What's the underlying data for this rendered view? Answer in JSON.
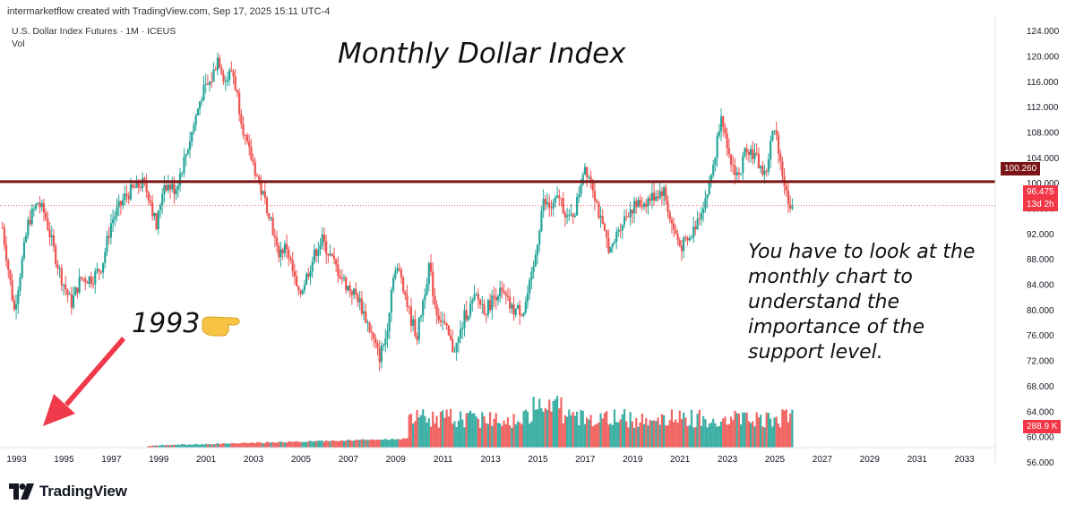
{
  "header": {
    "credit": "intermarketflow created with TradingView.com, Sep 17, 2025 15:11 UTC-4",
    "symbol": "U.S. Dollar Index Futures · 1M · ICEUS",
    "volume_label": "Vol"
  },
  "annotations": {
    "title": "Monthly Dollar Index",
    "year_callout": "1993",
    "note_lines": [
      "You have to look at the",
      "monthly chart to",
      "understand the",
      "importance of the",
      "support level."
    ]
  },
  "price_tags": {
    "support": "100.260",
    "last_price": "96.475",
    "countdown": "13d 2h",
    "volume": "288.9 K"
  },
  "footer": {
    "brand": "TradingView"
  },
  "colors": {
    "up": "#26a69a",
    "down": "#ef5350",
    "support_line": "#7b1416",
    "arrow": "#f0394a",
    "hand": "#f6c343",
    "axis_text": "#131722"
  },
  "chart_data": {
    "type": "candlestick",
    "period": "monthly",
    "y_axis_ticks": [
      56.0,
      60.0,
      64.0,
      68.0,
      72.0,
      76.0,
      80.0,
      84.0,
      88.0,
      92.0,
      96.0,
      100.0,
      104.0,
      108.0,
      112.0,
      116.0,
      120.0,
      124.0
    ],
    "y_axis_tick_labels": [
      "56.000",
      "60.000",
      "64.000",
      "68.000",
      "72.000",
      "76.000",
      "80.000",
      "84.000",
      "88.000",
      "92.000",
      "96.000",
      "100.000",
      "104.000",
      "108.000",
      "112.000",
      "116.000",
      "120.000",
      "124.000"
    ],
    "x_axis_ticks": [
      "1993",
      "1995",
      "1997",
      "1999",
      "2001",
      "2003",
      "2005",
      "2007",
      "2009",
      "2011",
      "2013",
      "2015",
      "2017",
      "2019",
      "2021",
      "2023",
      "2025",
      "2027",
      "2029",
      "2031",
      "2033"
    ],
    "x_range_years": [
      1992.3,
      2034.3
    ],
    "y_range": [
      55.5,
      125.5
    ],
    "support_level": 100.26,
    "last_price": 96.475,
    "volume_last": "288.9 K",
    "price_path": [
      [
        1992.4,
        93
      ],
      [
        1992.9,
        80
      ],
      [
        1993.2,
        87
      ],
      [
        1993.5,
        94
      ],
      [
        1993.9,
        97
      ],
      [
        1994.2,
        95
      ],
      [
        1994.6,
        89
      ],
      [
        1994.9,
        85
      ],
      [
        1995.3,
        81
      ],
      [
        1995.7,
        85
      ],
      [
        1996.2,
        85
      ],
      [
        1996.6,
        87
      ],
      [
        1997.0,
        94
      ],
      [
        1997.6,
        98
      ],
      [
        1997.9,
        99
      ],
      [
        1998.3,
        100
      ],
      [
        1998.6,
        98
      ],
      [
        1998.9,
        93
      ],
      [
        1999.2,
        100
      ],
      [
        1999.7,
        99
      ],
      [
        2000.1,
        104
      ],
      [
        2000.4,
        108
      ],
      [
        2000.8,
        114
      ],
      [
        2001.2,
        116
      ],
      [
        2001.5,
        120
      ],
      [
        2001.8,
        116
      ],
      [
        2002.1,
        118
      ],
      [
        2002.4,
        112
      ],
      [
        2002.7,
        106
      ],
      [
        2003.0,
        103
      ],
      [
        2003.3,
        99
      ],
      [
        2003.7,
        95
      ],
      [
        2004.0,
        89
      ],
      [
        2004.4,
        90
      ],
      [
        2004.9,
        82
      ],
      [
        2005.3,
        86
      ],
      [
        2005.7,
        90
      ],
      [
        2005.9,
        91
      ],
      [
        2006.3,
        88
      ],
      [
        2006.9,
        84
      ],
      [
        2007.4,
        82
      ],
      [
        2007.9,
        77
      ],
      [
        2008.3,
        72.5
      ],
      [
        2008.6,
        76
      ],
      [
        2008.9,
        86
      ],
      [
        2009.2,
        86
      ],
      [
        2009.6,
        79
      ],
      [
        2009.9,
        76
      ],
      [
        2010.4,
        87
      ],
      [
        2010.7,
        80
      ],
      [
        2011.0,
        78
      ],
      [
        2011.4,
        74
      ],
      [
        2011.6,
        74.5
      ],
      [
        2011.9,
        79
      ],
      [
        2012.4,
        82
      ],
      [
        2012.8,
        80
      ],
      [
        2013.3,
        83
      ],
      [
        2013.6,
        82
      ],
      [
        2013.9,
        80
      ],
      [
        2014.4,
        80
      ],
      [
        2014.8,
        86
      ],
      [
        2015.2,
        97
      ],
      [
        2015.6,
        96
      ],
      [
        2015.9,
        98
      ],
      [
        2016.3,
        94
      ],
      [
        2016.6,
        96
      ],
      [
        2016.95,
        103
      ],
      [
        2017.3,
        100
      ],
      [
        2017.7,
        93
      ],
      [
        2018.1,
        89
      ],
      [
        2018.4,
        93
      ],
      [
        2018.9,
        96
      ],
      [
        2019.5,
        97
      ],
      [
        2019.9,
        98
      ],
      [
        2020.3,
        99
      ],
      [
        2020.6,
        94
      ],
      [
        2021.0,
        90
      ],
      [
        2021.4,
        91
      ],
      [
        2021.8,
        95
      ],
      [
        2022.2,
        99
      ],
      [
        2022.5,
        105
      ],
      [
        2022.75,
        112
      ],
      [
        2023.0,
        104
      ],
      [
        2023.5,
        101
      ],
      [
        2023.8,
        106
      ],
      [
        2024.2,
        104
      ],
      [
        2024.6,
        101
      ],
      [
        2024.9,
        108
      ],
      [
        2025.1,
        107
      ],
      [
        2025.3,
        102
      ],
      [
        2025.5,
        98
      ],
      [
        2025.7,
        96.5
      ]
    ]
  }
}
